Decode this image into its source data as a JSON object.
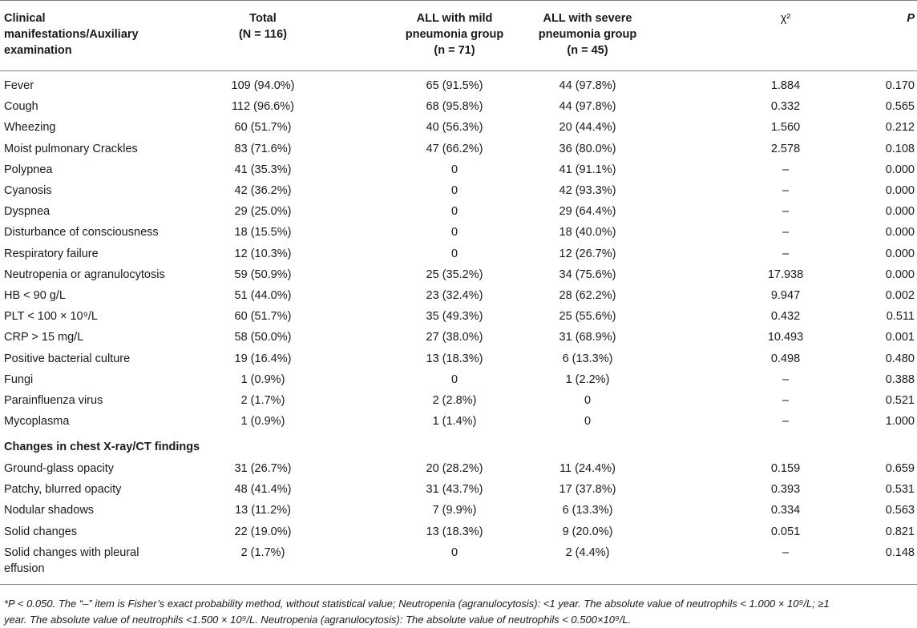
{
  "header": {
    "col1": [
      "Clinical",
      "manifestations/Auxiliary",
      "examination"
    ],
    "col2": [
      "Total",
      "(N = 116)"
    ],
    "col3": [
      "ALL with mild",
      "pneumonia group",
      "(n = 71)"
    ],
    "col4": [
      "ALL with severe",
      "pneumonia group",
      "(n = 45)"
    ],
    "col5": "χ²",
    "col6": "P"
  },
  "rows": [
    {
      "label": "Fever",
      "total": "109 (94.0%)",
      "mild": "65 (91.5%)",
      "severe": "44 (97.8%)",
      "chi2": "1.884",
      "p": "0.170"
    },
    {
      "label": "Cough",
      "total": "112 (96.6%)",
      "mild": "68 (95.8%)",
      "severe": "44 (97.8%)",
      "chi2": "0.332",
      "p": "0.565"
    },
    {
      "label": "Wheezing",
      "total": "60 (51.7%)",
      "mild": "40 (56.3%)",
      "severe": "20 (44.4%)",
      "chi2": "1.560",
      "p": "0.212"
    },
    {
      "label": "Moist pulmonary Crackles",
      "total": "83 (71.6%)",
      "mild": "47 (66.2%)",
      "severe": "36 (80.0%)",
      "chi2": "2.578",
      "p": "0.108"
    },
    {
      "label": "Polypnea",
      "total": "41 (35.3%)",
      "mild": "0",
      "severe": "41 (91.1%)",
      "chi2": "–",
      "p": "0.000"
    },
    {
      "label": "Cyanosis",
      "total": "42 (36.2%)",
      "mild": "0",
      "severe": "42 (93.3%)",
      "chi2": "–",
      "p": "0.000"
    },
    {
      "label": "Dyspnea",
      "total": "29 (25.0%)",
      "mild": "0",
      "severe": "29 (64.4%)",
      "chi2": "–",
      "p": "0.000"
    },
    {
      "label": "Disturbance of consciousness",
      "total": "18 (15.5%)",
      "mild": "0",
      "severe": "18 (40.0%)",
      "chi2": "–",
      "p": "0.000"
    },
    {
      "label": "Respiratory failure",
      "total": "12 (10.3%)",
      "mild": "0",
      "severe": "12 (26.7%)",
      "chi2": "–",
      "p": "0.000"
    },
    {
      "label": "Neutropenia or agranulocytosis",
      "total": "59 (50.9%)",
      "mild": "25 (35.2%)",
      "severe": "34 (75.6%)",
      "chi2": "17.938",
      "p": "0.000"
    },
    {
      "label": "HB < 90 g/L",
      "total": "51 (44.0%)",
      "mild": "23 (32.4%)",
      "severe": "28 (62.2%)",
      "chi2": "9.947",
      "p": "0.002"
    },
    {
      "label": "PLT < 100 × 10⁹/L",
      "total": "60 (51.7%)",
      "mild": "35 (49.3%)",
      "severe": "25 (55.6%)",
      "chi2": "0.432",
      "p": "0.511"
    },
    {
      "label": "CRP > 15 mg/L",
      "total": "58 (50.0%)",
      "mild": "27 (38.0%)",
      "severe": "31 (68.9%)",
      "chi2": "10.493",
      "p": "0.001"
    },
    {
      "label": "Positive bacterial culture",
      "total": "19 (16.4%)",
      "mild": "13 (18.3%)",
      "severe": "6 (13.3%)",
      "chi2": "0.498",
      "p": "0.480"
    },
    {
      "label": "Fungi",
      "total": "1 (0.9%)",
      "mild": "0",
      "severe": "1 (2.2%)",
      "chi2": "–",
      "p": "0.388"
    },
    {
      "label": "Parainfluenza virus",
      "total": "2 (1.7%)",
      "mild": "2 (2.8%)",
      "severe": "0",
      "chi2": "–",
      "p": "0.521"
    },
    {
      "label": "Mycoplasma",
      "total": "1 (0.9%)",
      "mild": "1 (1.4%)",
      "severe": "0",
      "chi2": "–",
      "p": "1.000"
    }
  ],
  "section_title": "Changes in chest X-ray/CT findings",
  "rows2": [
    {
      "label": "Ground-glass opacity",
      "total": "31 (26.7%)",
      "mild": "20 (28.2%)",
      "severe": "11 (24.4%)",
      "chi2": "0.159",
      "p": "0.659"
    },
    {
      "label": "Patchy, blurred opacity",
      "total": "48 (41.4%)",
      "mild": "31 (43.7%)",
      "severe": "17 (37.8%)",
      "chi2": "0.393",
      "p": "0.531"
    },
    {
      "label": "Nodular shadows",
      "total": "13 (11.2%)",
      "mild": "7 (9.9%)",
      "severe": "6 (13.3%)",
      "chi2": "0.334",
      "p": "0.563"
    },
    {
      "label": "Solid changes",
      "total": "22 (19.0%)",
      "mild": "13 (18.3%)",
      "severe": "9 (20.0%)",
      "chi2": "0.051",
      "p": "0.821"
    }
  ],
  "last_row": {
    "label1": "Solid changes with pleural",
    "label2": "effusion",
    "total": "2 (1.7%)",
    "mild": "0",
    "severe": "2 (4.4%)",
    "chi2": "–",
    "p": "0.148"
  },
  "footnote": {
    "line1": "*P < 0.050. The “–” item is Fisher’s exact probability method, without statistical value; Neutropenia (agranulocytosis): <1 year. The absolute value of neutrophils < 1.000 × 10⁹/L; ≥1",
    "line2": "year. The absolute value of neutrophils <1.500 × 10⁹/L. Neutropenia (agranulocytosis): The absolute value of neutrophils < 0.500×10⁹/L."
  }
}
